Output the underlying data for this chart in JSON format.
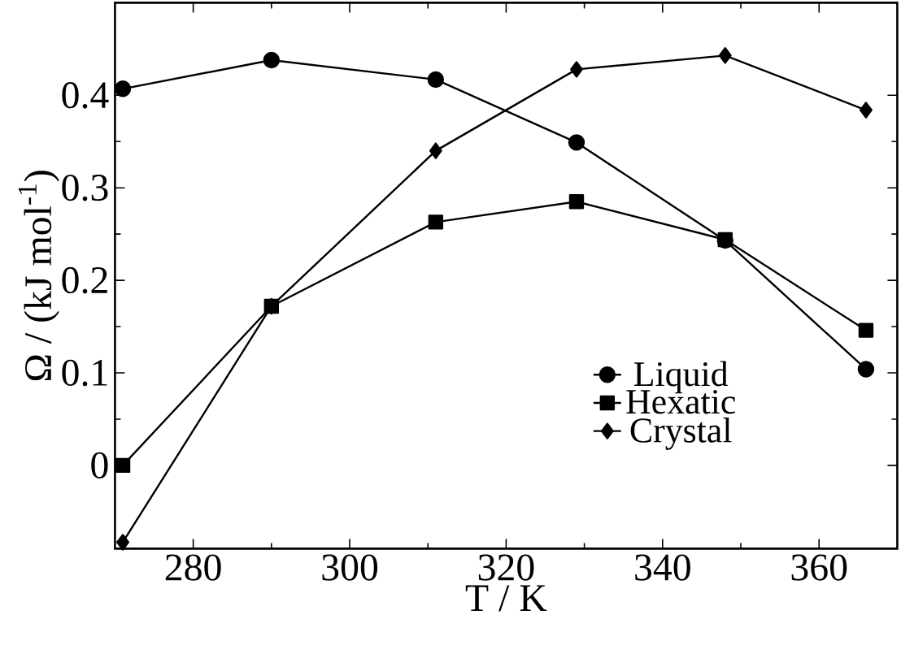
{
  "chart_data": {
    "type": "line",
    "xlabel": "T / K",
    "ylabel": "Ω / (kJ mol$^{-1}$)",
    "x": [
      271,
      290,
      311,
      329,
      348,
      366
    ],
    "series": [
      {
        "name": "Liquid",
        "color": "#000000",
        "marker": "circle",
        "values": [
          0.407,
          0.438,
          0.417,
          0.349,
          0.243,
          0.104
        ]
      },
      {
        "name": "Hexatic",
        "color": "#000000",
        "marker": "square",
        "values": [
          0.0,
          0.172,
          0.263,
          0.285,
          0.244,
          0.146
        ]
      },
      {
        "name": "Crystal",
        "color": "#000000",
        "marker": "diamond",
        "values": [
          -0.083,
          0.172,
          0.34,
          0.428,
          0.443,
          0.384
        ]
      }
    ],
    "xlim": [
      270,
      370
    ],
    "ylim": [
      -0.09,
      0.5
    ],
    "xticks": [
      280,
      300,
      320,
      340,
      360
    ],
    "yticks": [
      0,
      0.1,
      0.2,
      0.3,
      0.4
    ],
    "legend": "bottom right",
    "line_style": "solid",
    "grid": false
  }
}
